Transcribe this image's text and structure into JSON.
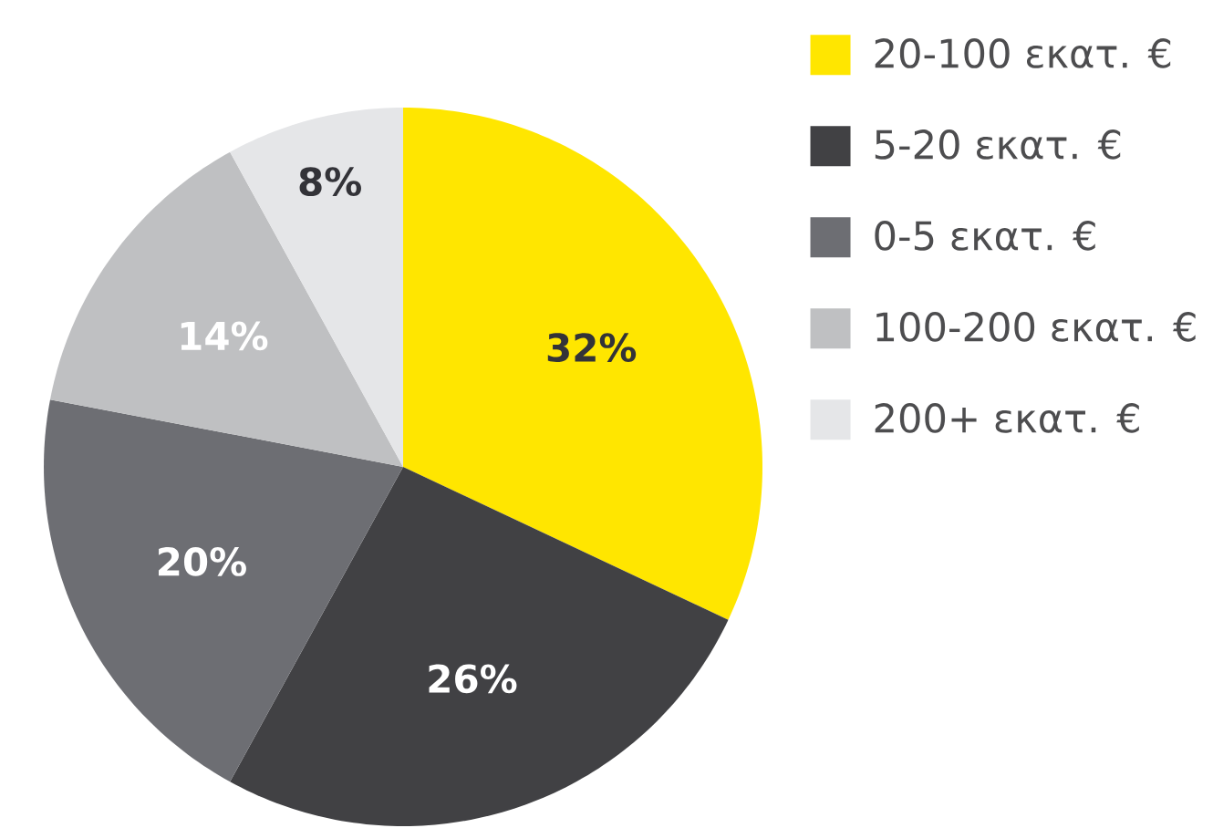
{
  "chart_data": {
    "type": "pie",
    "categories": [
      "20-100 εκατ. €",
      "5-20 εκατ. €",
      "0-5 εκατ. €",
      "100-200 εκατ. €",
      "200+ εκατ. €"
    ],
    "values": [
      32,
      26,
      20,
      14,
      8
    ],
    "colors": [
      "#ffe600",
      "#414144",
      "#6d6e73",
      "#bfc0c2",
      "#e5e6e8"
    ],
    "value_labels": [
      "32%",
      "26%",
      "20%",
      "14%",
      "8%"
    ],
    "legend": "top right"
  }
}
